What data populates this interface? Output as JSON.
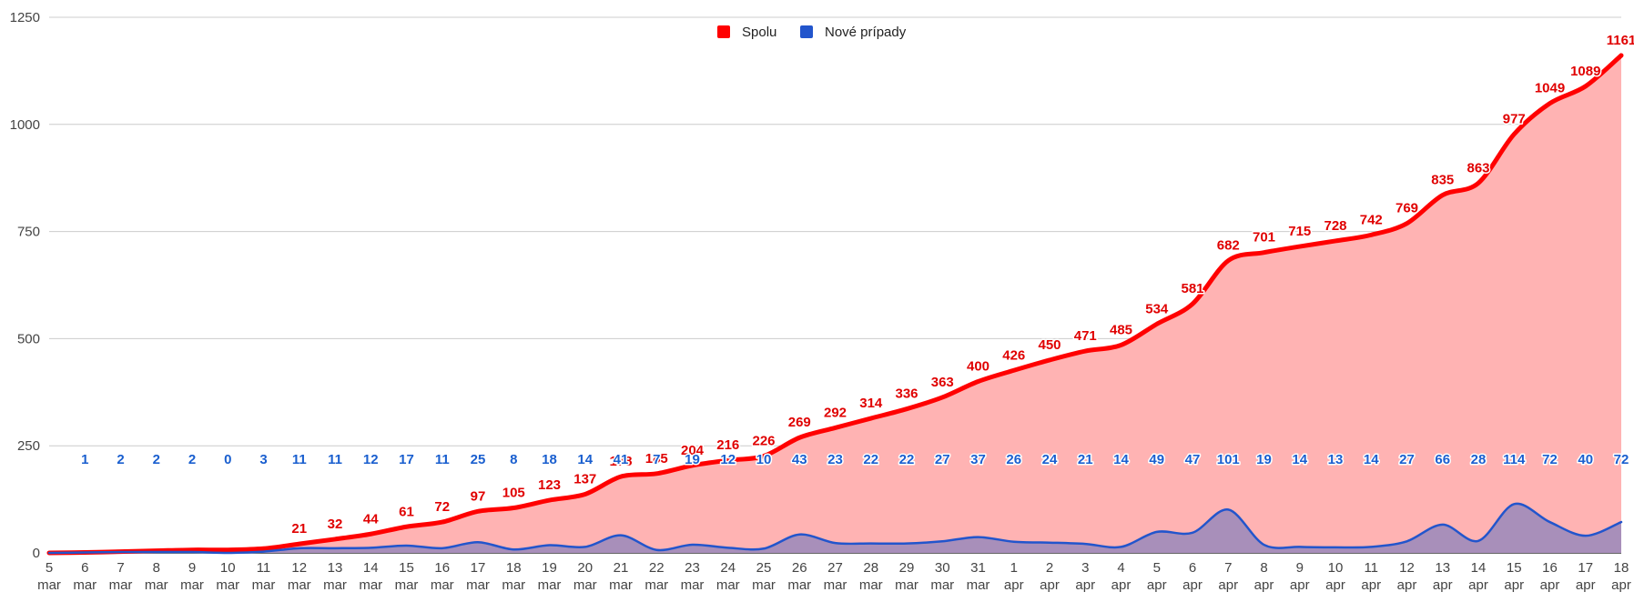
{
  "chart_data": {
    "type": "area",
    "x_dates": [
      "5",
      "6",
      "7",
      "8",
      "9",
      "10",
      "11",
      "12",
      "13",
      "14",
      "15",
      "16",
      "17",
      "18",
      "19",
      "20",
      "21",
      "22",
      "23",
      "24",
      "25",
      "26",
      "27",
      "28",
      "29",
      "30",
      "31",
      "1",
      "2",
      "3",
      "4",
      "5",
      "6",
      "7",
      "8",
      "9",
      "10",
      "11",
      "12",
      "13",
      "14",
      "15",
      "16",
      "17",
      "18"
    ],
    "x_months": [
      "mar",
      "mar",
      "mar",
      "mar",
      "mar",
      "mar",
      "mar",
      "mar",
      "mar",
      "mar",
      "mar",
      "mar",
      "mar",
      "mar",
      "mar",
      "mar",
      "mar",
      "mar",
      "mar",
      "mar",
      "mar",
      "mar",
      "mar",
      "mar",
      "mar",
      "mar",
      "mar",
      "apr",
      "apr",
      "apr",
      "apr",
      "apr",
      "apr",
      "apr",
      "apr",
      "apr",
      "apr",
      "apr",
      "apr",
      "apr",
      "apr",
      "apr",
      "apr",
      "apr",
      "apr"
    ],
    "ylim": [
      0,
      1250
    ],
    "yticks": [
      0,
      250,
      500,
      750,
      1000,
      1250
    ],
    "grid": true,
    "legend_position": "top-center",
    "series": [
      {
        "name": "Spolu",
        "color": "#ff0000",
        "fill": "#ffb3b3",
        "label_color": "#e00000",
        "values": [
          0,
          1,
          3,
          5,
          7,
          7,
          10,
          21,
          32,
          44,
          61,
          72,
          97,
          105,
          123,
          137,
          178,
          185,
          204,
          216,
          226,
          269,
          292,
          314,
          336,
          363,
          400,
          426,
          450,
          471,
          485,
          534,
          581,
          682,
          701,
          715,
          728,
          742,
          769,
          835,
          863,
          977,
          1049,
          1089,
          1161
        ]
      },
      {
        "name": "Nové prípady",
        "color": "#2255cc",
        "fill": "#9988bb",
        "label_color": "#1a5fcf",
        "values": [
          0,
          1,
          2,
          2,
          2,
          0,
          3,
          11,
          11,
          12,
          17,
          11,
          25,
          8,
          18,
          14,
          41,
          7,
          19,
          12,
          10,
          43,
          23,
          22,
          22,
          27,
          37,
          26,
          24,
          21,
          14,
          49,
          47,
          101,
          19,
          14,
          13,
          14,
          27,
          66,
          28,
          114,
          72,
          40,
          72
        ]
      }
    ]
  }
}
